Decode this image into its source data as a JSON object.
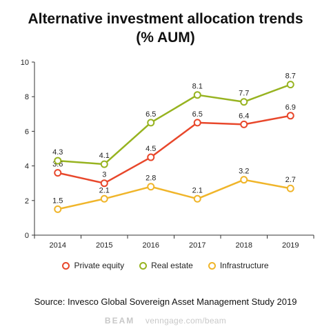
{
  "chart_data": {
    "type": "line",
    "title_lines": [
      "Alternative investment allocation trends",
      "(% AUM)"
    ],
    "x": [
      "2014",
      "2015",
      "2016",
      "2017",
      "2018",
      "2019"
    ],
    "ylim": [
      0,
      10
    ],
    "yticks": [
      0,
      2,
      4,
      6,
      8,
      10
    ],
    "grid": false,
    "legend_position": "bottom",
    "series": [
      {
        "name": "Private equity",
        "color": "#e8472b",
        "values": [
          3.6,
          3,
          4.5,
          6.5,
          6.4,
          6.9
        ],
        "labels": [
          "3.6",
          "3",
          "4.5",
          "6.5",
          "6.4",
          "6.9"
        ]
      },
      {
        "name": "Real estate",
        "color": "#97b320",
        "values": [
          4.3,
          4.1,
          6.5,
          8.1,
          7.7,
          8.7
        ],
        "labels": [
          "4.3",
          "4.1",
          "6.5",
          "8.1",
          "7.7",
          "8.7"
        ]
      },
      {
        "name": "Infrastructure",
        "color": "#f0b52a",
        "values": [
          1.5,
          2.1,
          2.8,
          2.1,
          3.2,
          2.7
        ],
        "labels": [
          "1.5",
          "2.1",
          "2.8",
          "2.1",
          "3.2",
          "2.7"
        ]
      }
    ]
  },
  "source": "Source: Invesco Global Sovereign Asset Management Study 2019",
  "footer": {
    "brand": "BEAM",
    "url": "venngage.com/beam"
  }
}
